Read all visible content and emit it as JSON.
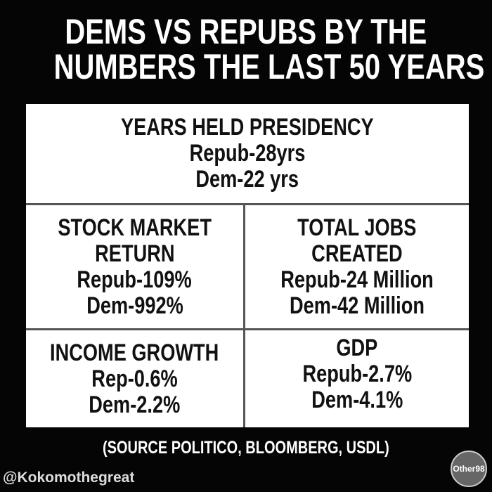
{
  "title": [
    "DEMS VS REPUBS BY THE",
    "NUMBERS THE LAST 50 YEARS"
  ],
  "cells": [
    {
      "heading": [
        "YEARS HELD PRESIDENCY"
      ],
      "lines": [
        "Repub-28yrs",
        "Dem-22 yrs"
      ]
    },
    {
      "heading": [
        "STOCK MARKET",
        "RETURN"
      ],
      "lines": [
        "Repub-109%",
        "Dem-992%"
      ]
    },
    {
      "heading": [
        "TOTAL JOBS",
        "CREATED"
      ],
      "lines": [
        "Repub-24 Million",
        "Dem-42 Million"
      ]
    },
    {
      "heading": [
        "INCOME GROWTH"
      ],
      "lines": [
        "Rep-0.6%",
        "Dem-2.2%"
      ]
    },
    {
      "heading": [
        "GDP"
      ],
      "lines": [
        "Repub-2.7%",
        "Dem-4.1%"
      ]
    }
  ],
  "source": "(SOURCE POLITICO, BLOOMBERG, USDL)",
  "handle": "@Kokomothegreat",
  "logo": "Other98"
}
